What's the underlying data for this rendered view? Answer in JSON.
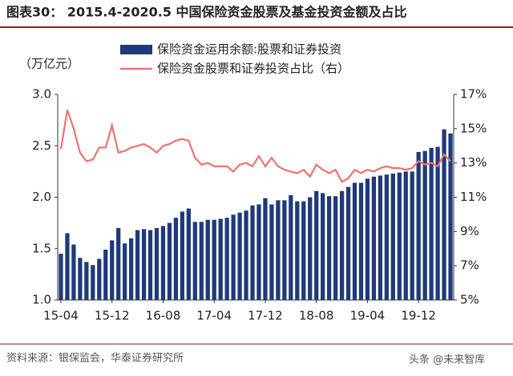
{
  "chart_data": {
    "type": "bar",
    "title": "图表30：  2015.4-2020.5 中国保险资金股票及基金投资金额及占比",
    "y_label": "（万亿元）",
    "source": "资料来源：银保监会，华泰证券研究所",
    "watermark": "头条 @未来智库",
    "categories": [
      "15-04",
      null,
      null,
      null,
      null,
      null,
      null,
      null,
      "15-12",
      null,
      null,
      null,
      null,
      null,
      null,
      null,
      "16-08",
      null,
      null,
      null,
      null,
      null,
      null,
      null,
      "17-04",
      null,
      null,
      null,
      null,
      null,
      null,
      null,
      "17-12",
      null,
      null,
      null,
      null,
      null,
      null,
      null,
      "18-08",
      null,
      null,
      null,
      null,
      null,
      null,
      null,
      "19-04",
      null,
      null,
      null,
      null,
      null,
      null,
      null,
      "19-12",
      null,
      null,
      null,
      null,
      null
    ],
    "series": [
      {
        "name": "保险资金运用余额:股票和证券投资",
        "type": "bar",
        "axis": "y",
        "color": "#1f3a7a",
        "values": [
          1.45,
          1.65,
          1.54,
          1.41,
          1.37,
          1.34,
          1.4,
          1.49,
          1.58,
          1.7,
          1.55,
          1.6,
          1.68,
          1.69,
          1.68,
          1.7,
          1.72,
          1.75,
          1.8,
          1.86,
          1.89,
          1.76,
          1.76,
          1.78,
          1.78,
          1.79,
          1.8,
          1.83,
          1.85,
          1.87,
          1.92,
          1.93,
          1.99,
          1.93,
          1.97,
          1.97,
          2.02,
          1.96,
          1.96,
          2.0,
          2.06,
          2.04,
          2.01,
          2.01,
          2.06,
          2.1,
          2.14,
          2.14,
          2.18,
          2.2,
          2.21,
          2.22,
          2.23,
          2.24,
          2.25,
          2.25,
          2.44,
          2.45,
          2.48,
          2.49,
          2.66,
          2.62
        ]
      },
      {
        "name": "保险资金股票和证券投资占比（右）",
        "type": "line",
        "axis": "y2",
        "color": "#f07070",
        "values": [
          13.8,
          16.1,
          15.0,
          13.6,
          13.1,
          13.2,
          13.9,
          13.9,
          15.2,
          13.6,
          13.7,
          13.9,
          14.0,
          14.1,
          13.9,
          13.6,
          14.0,
          14.1,
          14.3,
          14.4,
          14.3,
          13.3,
          12.9,
          13.0,
          12.8,
          12.8,
          12.8,
          12.5,
          12.9,
          13.0,
          12.8,
          13.4,
          12.8,
          13.3,
          12.8,
          12.6,
          12.5,
          12.4,
          12.6,
          12.2,
          12.9,
          12.6,
          12.4,
          12.6,
          11.9,
          12.1,
          12.6,
          12.4,
          12.6,
          12.5,
          12.7,
          12.8,
          12.7,
          12.7,
          12.6,
          12.7,
          13.1,
          12.9,
          13.0,
          12.8,
          13.5,
          13.1
        ]
      }
    ],
    "ylim": [
      1,
      3
    ],
    "yticks": [
      {
        "value": 1,
        "label": "1.0"
      },
      1.5,
      {
        "value": 2,
        "label": "2.0"
      },
      2.5,
      {
        "value": 3,
        "label": "3.0"
      }
    ],
    "y2lim": [
      5,
      17
    ],
    "y2ticks": [
      {
        "value": 5,
        "label": "5%"
      },
      {
        "value": 7,
        "label": "7%"
      },
      {
        "value": 9,
        "label": "9%"
      },
      {
        "value": 11,
        "label": "11%"
      },
      {
        "value": 13,
        "label": "13%"
      },
      {
        "value": 15,
        "label": "15%"
      },
      {
        "value": 17,
        "label": "17%"
      }
    ]
  }
}
